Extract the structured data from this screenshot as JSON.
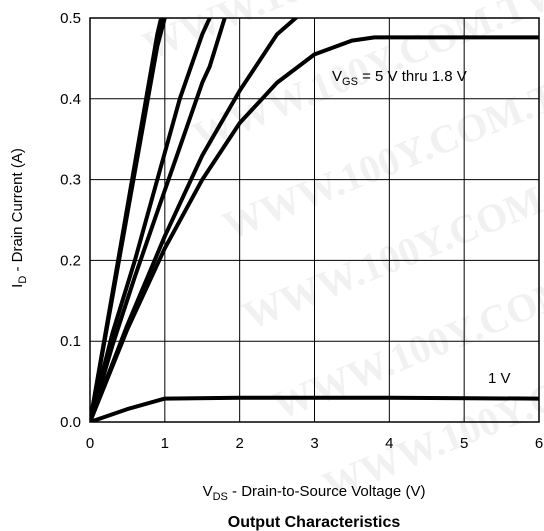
{
  "chart_data": {
    "type": "line",
    "title": "Output Characteristics",
    "xlabel": {
      "main": "V",
      "sub": "DS",
      "rest": " - Drain-to-Source Voltage (V)"
    },
    "ylabel": {
      "main": "I",
      "sub": "D",
      "rest": " - Drain Current (A)"
    },
    "xlim": [
      0,
      6
    ],
    "ylim": [
      0,
      0.5
    ],
    "xticks": [
      "0",
      "1",
      "2",
      "3",
      "4",
      "5",
      "6"
    ],
    "yticks": [
      "0.0",
      "0.1",
      "0.2",
      "0.3",
      "0.4",
      "0.5"
    ],
    "grid": true,
    "watermark": "WWW.100Y.COM.TW",
    "annotations": {
      "vgs": {
        "main": "V",
        "sub": "GS",
        "rest": " = 5 V thru 1.8 V"
      },
      "one_volt": "1 V"
    },
    "series": [
      {
        "x": [
          0,
          0.3,
          0.6,
          0.9,
          0.95
        ],
        "y": [
          0,
          0.16,
          0.32,
          0.48,
          0.5
        ]
      },
      {
        "x": [
          0,
          0.3,
          0.6,
          0.9,
          1.0
        ],
        "y": [
          0,
          0.155,
          0.31,
          0.465,
          0.5
        ]
      },
      {
        "x": [
          0,
          0.3,
          0.6,
          0.9,
          1.2,
          1.5,
          1.6
        ],
        "y": [
          0,
          0.11,
          0.2,
          0.3,
          0.4,
          0.48,
          0.5
        ]
      },
      {
        "x": [
          0,
          0.3,
          0.6,
          0.9,
          1.2,
          1.5,
          1.6,
          1.8
        ],
        "y": [
          0,
          0.095,
          0.18,
          0.26,
          0.34,
          0.42,
          0.44,
          0.5
        ]
      },
      {
        "x": [
          0,
          0.5,
          1.0,
          1.5,
          2.0,
          2.5,
          2.75
        ],
        "y": [
          0,
          0.12,
          0.23,
          0.33,
          0.41,
          0.48,
          0.5
        ]
      },
      {
        "x": [
          0,
          0.5,
          1.0,
          1.5,
          2.0,
          2.5,
          3.0,
          3.5,
          3.8,
          4.0,
          6.0
        ],
        "y": [
          0,
          0.115,
          0.215,
          0.3,
          0.37,
          0.42,
          0.455,
          0.472,
          0.476,
          0.476,
          0.476
        ]
      },
      {
        "x": [
          0,
          0.5,
          1.0,
          2.0,
          4.0,
          6.0
        ],
        "y": [
          0,
          0.016,
          0.029,
          0.03,
          0.03,
          0.029
        ]
      }
    ]
  }
}
